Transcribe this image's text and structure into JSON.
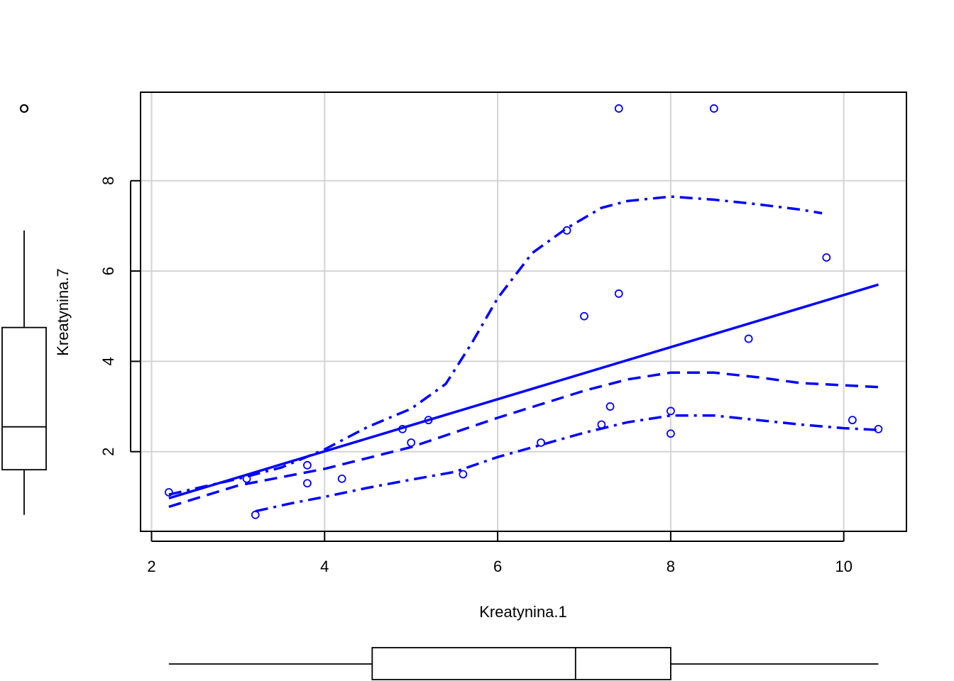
{
  "chart_data": {
    "type": "scatter",
    "title": "",
    "xlabel": "Kreatynina.1",
    "ylabel": "Kreatynina.7",
    "xlim": [
      2,
      10.6
    ],
    "ylim": [
      0.2,
      9.9
    ],
    "grid": true,
    "x_ticks": [
      "2",
      "4",
      "6",
      "8",
      "10"
    ],
    "y_ticks": [
      "2",
      "4",
      "6",
      "8"
    ],
    "colors": {
      "series": "#0000ff",
      "axes": "#000000",
      "grid": "#d3d3d3"
    },
    "points": {
      "x": [
        2.2,
        3.1,
        3.2,
        3.8,
        3.8,
        4.2,
        4.9,
        5.0,
        5.2,
        5.6,
        6.5,
        6.8,
        7.0,
        7.2,
        7.3,
        7.4,
        7.4,
        8.0,
        8.0,
        8.5,
        8.9,
        9.8,
        10.1,
        10.4
      ],
      "y": [
        1.1,
        1.4,
        0.6,
        1.7,
        1.3,
        1.4,
        2.5,
        2.2,
        2.7,
        1.5,
        2.2,
        6.9,
        5.0,
        2.6,
        3.0,
        9.6,
        5.5,
        2.9,
        2.4,
        9.6,
        4.5,
        6.3,
        2.7,
        2.5
      ]
    },
    "regression_line": {
      "x": [
        2.2,
        10.4
      ],
      "y": [
        0.97,
        5.7
      ]
    },
    "smooth_line": {
      "x": [
        2.2,
        3.0,
        4.0,
        5.0,
        6.0,
        7.0,
        7.5,
        8.0,
        8.5,
        9.0,
        9.5,
        10.0,
        10.4
      ],
      "y": [
        0.78,
        1.25,
        1.62,
        2.1,
        2.75,
        3.35,
        3.6,
        3.75,
        3.75,
        3.65,
        3.52,
        3.47,
        3.43
      ]
    },
    "upper_band": {
      "x": [
        2.2,
        3.0,
        3.5,
        4.0,
        4.5,
        5.0,
        5.4,
        5.7,
        6.0,
        6.4,
        6.8,
        7.2,
        7.5,
        8.0,
        8.5,
        9.0,
        9.5,
        9.75
      ],
      "y": [
        1.05,
        1.4,
        1.65,
        2.05,
        2.55,
        2.95,
        3.5,
        4.4,
        5.4,
        6.4,
        6.95,
        7.4,
        7.55,
        7.65,
        7.58,
        7.48,
        7.36,
        7.28
      ]
    },
    "lower_band": {
      "x": [
        3.2,
        3.6,
        4.0,
        4.5,
        5.0,
        5.5,
        6.0,
        6.5,
        7.0,
        7.5,
        8.0,
        8.5,
        9.0,
        9.5,
        10.0,
        10.4
      ],
      "y": [
        0.68,
        0.85,
        1.0,
        1.2,
        1.38,
        1.55,
        1.88,
        2.15,
        2.42,
        2.65,
        2.8,
        2.8,
        2.7,
        2.6,
        2.52,
        2.48
      ]
    },
    "x_boxplot": {
      "min": 2.2,
      "q1": 4.55,
      "median": 6.9,
      "q3": 8.0,
      "max": 10.4
    },
    "y_boxplot": {
      "min": 0.6,
      "q1": 1.6,
      "median": 2.55,
      "q3": 4.75,
      "max": 6.9,
      "outliers": [
        9.6
      ]
    }
  }
}
